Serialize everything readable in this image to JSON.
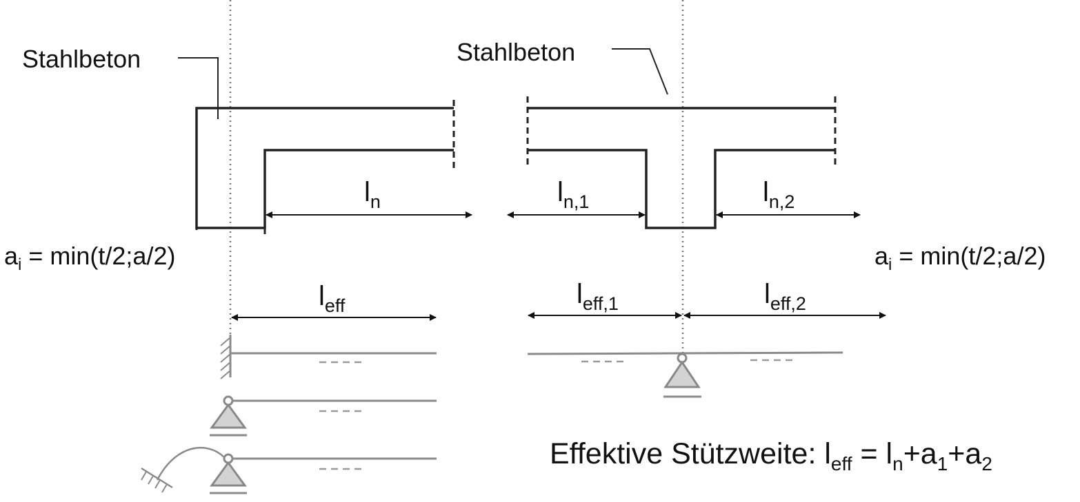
{
  "labels": {
    "material_left": "Stahlbeton",
    "material_right": "Stahlbeton",
    "support_width": {
      "base": "a",
      "sub": "i",
      "rest": " = min(t/2;a/2)"
    },
    "ln": {
      "base": "l",
      "sub": "n"
    },
    "ln1": {
      "base": "l",
      "sub": "n,1"
    },
    "ln2": {
      "base": "l",
      "sub": "n,2"
    },
    "leff": {
      "base": "l",
      "sub": "eff"
    },
    "leff1": {
      "base": "l",
      "sub": "eff,1"
    },
    "leff2": {
      "base": "l",
      "sub": "eff,2"
    },
    "formula": {
      "prefix": "Effektive Stützweite: ",
      "l": "l",
      "eff": "eff",
      "eq": " = ",
      "n": "n",
      "plus_a": "+a",
      "one": "1",
      "two": "2"
    }
  },
  "icons": [
    "fixed-support-icon",
    "pinned-support-icon",
    "rotational-spring-support-icon",
    "roller-support-icon"
  ],
  "colors": {
    "structure": "#222222",
    "static_system": "#8a8a8a",
    "support_fill": "#d3d3d3"
  }
}
